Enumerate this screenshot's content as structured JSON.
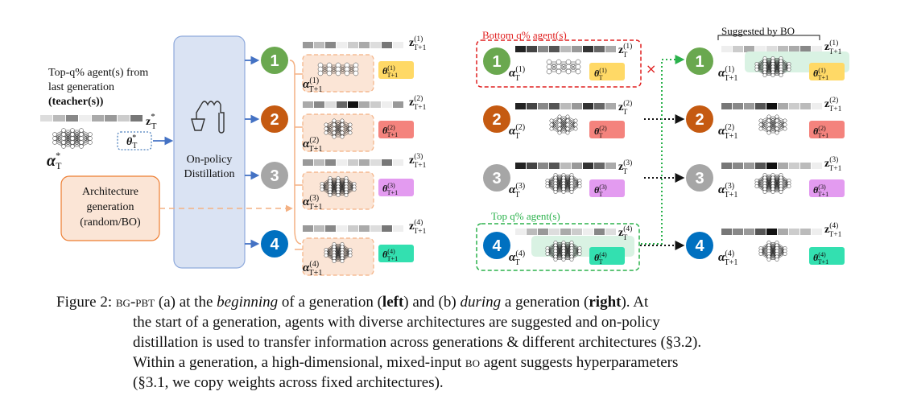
{
  "left": {
    "teacher_line1": "Top-q% agent(s) from",
    "teacher_line2": "last generation",
    "teacher_line3": "(teacher(s))",
    "teacher_z": "z",
    "teacher_z_sup": "*",
    "teacher_z_sub": "T",
    "teacher_theta": "θ",
    "teacher_theta_sup": "*",
    "teacher_theta_sub": "T",
    "teacher_alpha": "α",
    "teacher_alpha_sup": "*",
    "teacher_alpha_sub": "T",
    "distill_line1": "On-policy",
    "distill_line2": "Distillation",
    "arch_line1": "Architecture",
    "arch_line2": "generation",
    "arch_line3": "(random/BO)",
    "agents": [
      {
        "num": "1",
        "z": "z",
        "z_sup": "(1)",
        "z_sub": "T+1",
        "theta": "θ",
        "theta_sup": "(1)",
        "theta_sub": "T+1",
        "alpha": "α",
        "alpha_sup": "(1)",
        "alpha_sub": "T+1"
      },
      {
        "num": "2",
        "z": "z",
        "z_sup": "(2)",
        "z_sub": "T+1",
        "theta": "θ",
        "theta_sup": "(2)",
        "theta_sub": "T+1",
        "alpha": "α",
        "alpha_sup": "(2)",
        "alpha_sub": "T+1"
      },
      {
        "num": "3",
        "z": "z",
        "z_sup": "(3)",
        "z_sub": "T+1",
        "theta": "θ",
        "theta_sup": "(3)",
        "theta_sub": "T+1",
        "alpha": "α",
        "alpha_sup": "(3)",
        "alpha_sub": "T+1"
      },
      {
        "num": "4",
        "z": "z",
        "z_sup": "(4)",
        "z_sub": "T+1",
        "theta": "θ",
        "theta_sup": "(4)",
        "theta_sub": "T+1",
        "alpha": "α",
        "alpha_sup": "(4)",
        "alpha_sub": "T+1"
      }
    ]
  },
  "right": {
    "bottom_label": "Bottom q% agent(s)",
    "top_label": "Top q% agent(s)",
    "suggested_label": "Suggested by BO",
    "cross": "×",
    "before": [
      {
        "num": "1",
        "z": "z",
        "z_sup": "(1)",
        "z_sub": "T",
        "theta": "θ",
        "theta_sup": "(1)",
        "theta_sub": "T",
        "alpha": "α",
        "alpha_sup": "(1)",
        "alpha_sub": "T"
      },
      {
        "num": "2",
        "z": "z",
        "z_sup": "(2)",
        "z_sub": "T",
        "theta": "θ",
        "theta_sup": "(2)",
        "theta_sub": "T",
        "alpha": "α",
        "alpha_sup": "(2)",
        "alpha_sub": "T"
      },
      {
        "num": "3",
        "z": "z",
        "z_sup": "(3)",
        "z_sub": "T",
        "theta": "θ",
        "theta_sup": "(3)",
        "theta_sub": "T",
        "alpha": "α",
        "alpha_sup": "(3)",
        "alpha_sub": "T"
      },
      {
        "num": "4",
        "z": "z",
        "z_sup": "(4)",
        "z_sub": "T",
        "theta": "θ",
        "theta_sup": "(4)",
        "theta_sub": "T",
        "alpha": "α",
        "alpha_sup": "(4)",
        "alpha_sub": "T"
      }
    ],
    "after": [
      {
        "num": "1",
        "z": "z",
        "z_sup": "(1)",
        "z_sub": "T+1",
        "theta": "θ",
        "theta_sup": "(1)",
        "theta_sub": "T+1",
        "alpha": "α",
        "alpha_sup": "(1)",
        "alpha_sub": "T+1"
      },
      {
        "num": "2",
        "z": "z",
        "z_sup": "(2)",
        "z_sub": "T+1",
        "theta": "θ",
        "theta_sup": "(2)",
        "theta_sub": "T+1",
        "alpha": "α",
        "alpha_sup": "(2)",
        "alpha_sub": "T+1"
      },
      {
        "num": "3",
        "z": "z",
        "z_sup": "(3)",
        "z_sub": "T+1",
        "theta": "θ",
        "theta_sup": "(3)",
        "theta_sub": "T+1",
        "alpha": "α",
        "alpha_sup": "(3)",
        "alpha_sub": "T+1"
      },
      {
        "num": "4",
        "z": "z",
        "z_sup": "(4)",
        "z_sub": "T+1",
        "theta": "θ",
        "theta_sup": "(4)",
        "theta_sub": "T+1",
        "alpha": "α",
        "alpha_sup": "(4)",
        "alpha_sub": "T+1"
      }
    ]
  },
  "colors": {
    "agent1": "#6aa84f",
    "agent2": "#c55a11",
    "agent3": "#a6a6a6",
    "agent4": "#0070c0",
    "theta1": "#ffd966",
    "theta2": "#f4837d",
    "theta3": "#e39bf0",
    "theta4": "#33e0b0",
    "arrow_blue": "#4472c4",
    "distill_fill": "#dae3f3",
    "arch_fill": "#fbe5d6",
    "arch_stroke": "#ed7d31",
    "red_dash": "#e02020",
    "green_dash": "#2bb24c"
  },
  "caption": {
    "fig": "Figure 2: ",
    "sc_name": "bg-pbt",
    "p1": " (a) at the ",
    "beginning": "beginning",
    "p2": " of a generation (",
    "left": "left",
    "p3": ") and (b) ",
    "during": "during",
    "p4": " a generation (",
    "right": "right",
    "p5": "). At",
    "line2": "the start of a generation, agents with diverse architectures are suggested and on-policy",
    "line3": "distillation is used to transfer information across generations & different architectures (§3.2).",
    "line4a": "Within a generation, a high-dimensional, mixed-input ",
    "line4sc": "bo",
    "line4b": " agent suggests hyperparameters",
    "line5": "(§3.1, we copy weights across fixed architectures)."
  }
}
